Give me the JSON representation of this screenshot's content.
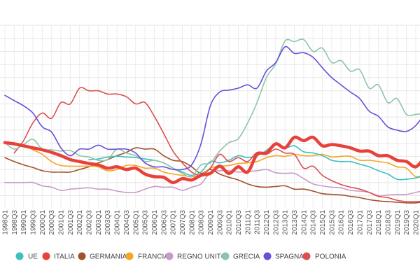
{
  "chart_data": {
    "type": "line",
    "title": "",
    "xlabel": "",
    "ylabel": "",
    "ylim": [
      0,
      30
    ],
    "grid": true,
    "legend_position": "bottom",
    "x": [
      "1998Q1",
      "1998Q3",
      "1999Q1",
      "1999Q3",
      "2000Q1",
      "2000Q3",
      "2001Q1",
      "2001Q3",
      "2002Q1",
      "2002Q3",
      "2003Q1",
      "2003Q3",
      "2004Q1",
      "2004Q3",
      "2005Q1",
      "2005Q3",
      "2006Q1",
      "2006Q3",
      "2007Q1",
      "2007Q3",
      "2008Q1",
      "2008Q3",
      "2009Q1",
      "2009Q3",
      "2010Q1",
      "2010Q3",
      "2011Q1",
      "2011Q3",
      "2012Q1",
      "2012Q3",
      "2013Q1",
      "2013Q3",
      "2014Q1",
      "2014Q3",
      "2015Q1",
      "2015Q3",
      "2016Q1",
      "2016Q3",
      "2017Q1",
      "2017Q3",
      "2018Q1",
      "2018Q3",
      "2019Q1",
      "2019Q3",
      "2020Q1",
      "2020Q3"
    ],
    "series": [
      {
        "name": "REGNO UNITO",
        "color": "#c99ac9",
        "values": [
          6.0,
          6.0,
          6.0,
          6.0,
          5.5,
          5.3,
          4.8,
          5.0,
          5.1,
          5.2,
          5.0,
          5.0,
          4.7,
          4.5,
          4.5,
          5.0,
          5.4,
          5.3,
          5.3,
          4.8,
          5.3,
          5.8,
          7.5,
          7.8,
          7.8,
          7.6,
          7.7,
          7.8,
          8.0,
          7.5,
          7.4,
          7.4,
          6.6,
          5.8,
          5.5,
          5.3,
          5.2,
          4.8,
          4.7,
          4.5,
          4.0,
          4.1,
          4.2,
          4.2,
          4.5,
          4.8
        ]
      },
      {
        "name": "GERMANIA",
        "color": "#a0522d",
        "values": [
          9.8,
          9.2,
          8.7,
          8.3,
          7.8,
          7.6,
          7.6,
          7.6,
          8.0,
          8.4,
          9.0,
          9.5,
          10.1,
          10.6,
          11.3,
          11.1,
          11.1,
          10.1,
          9.4,
          9.2,
          8.4,
          7.4,
          8.0,
          7.3,
          6.8,
          6.4,
          5.8,
          5.4,
          5.3,
          5.4,
          5.5,
          5.0,
          5.0,
          4.7,
          4.3,
          4.2,
          4.1,
          3.9,
          3.7,
          3.4,
          3.2,
          3.1,
          3.0,
          2.9,
          2.9,
          3.1
        ]
      },
      {
        "name": "FRANCIA",
        "color": "#f5a623",
        "values": [
          11.9,
          11.9,
          11.7,
          11.0,
          10.3,
          9.2,
          8.6,
          8.5,
          8.5,
          8.5,
          8.4,
          7.8,
          8.0,
          8.6,
          8.6,
          8.2,
          8.2,
          7.6,
          7.3,
          7.1,
          6.9,
          7.1,
          8.2,
          8.5,
          8.6,
          8.9,
          9.0,
          9.2,
          9.8,
          10.1,
          10.0,
          10.3,
          10.1,
          10.1,
          10.3,
          9.9,
          10.0,
          10.0,
          9.4,
          9.4,
          9.2,
          9.0,
          8.4,
          8.2,
          6.9,
          7.3
        ]
      },
      {
        "name": "UE",
        "color": "#3dbfc0",
        "values": [
          null,
          null,
          null,
          null,
          null,
          null,
          null,
          null,
          null,
          9.5,
          9.6,
          9.9,
          10.0,
          9.9,
          9.8,
          9.6,
          9.4,
          9.0,
          8.2,
          7.6,
          7.1,
          7.6,
          9.2,
          9.0,
          9.4,
          10.1,
          9.8,
          10.1,
          10.9,
          11.9,
          11.3,
          11.6,
          10.7,
          10.5,
          10.1,
          9.4,
          9.2,
          9.2,
          8.8,
          8.4,
          7.8,
          7.3,
          6.5,
          6.5,
          6.7,
          7.1
        ]
      },
      {
        "name": "POLONIA",
        "color": "#d9504f",
        "values": [
          null,
          10.5,
          12.4,
          15.1,
          16.6,
          15.8,
          18.2,
          18.0,
          20.4,
          20.0,
          20.0,
          19.5,
          19.5,
          19.1,
          18.0,
          18.2,
          16.1,
          13.5,
          10.8,
          9.0,
          7.6,
          7.1,
          8.2,
          10.3,
          9.2,
          9.8,
          9.2,
          10.6,
          10.3,
          11.1,
          10.5,
          10.3,
          8.2,
          8.5,
          7.1,
          6.3,
          5.7,
          5.3,
          5.0,
          4.5,
          3.9,
          3.7,
          3.3,
          3.1,
          3.1,
          3.2
        ]
      },
      {
        "name": "GRECIA",
        "color": "#8fc4a8",
        "values": [
          12.1,
          11.1,
          11.8,
          12.6,
          11.1,
          11.0,
          10.8,
          10.9,
          10.1,
          9.9,
          9.4,
          9.5,
          11.1,
          10.5,
          10.1,
          9.2,
          9.4,
          9.0,
          8.2,
          7.4,
          6.9,
          8.7,
          9.0,
          10.8,
          12.1,
          12.7,
          15.1,
          18.2,
          22.0,
          24.1,
          27.6,
          27.5,
          27.8,
          26.0,
          26.5,
          24.3,
          24.6,
          23.0,
          23.2,
          20.4,
          20.9,
          18.2,
          18.8,
          16.4,
          16.4,
          16.6
        ]
      },
      {
        "name": "SPAGNA",
        "color": "#6a4fd8",
        "values": [
          19.3,
          18.5,
          17.7,
          16.6,
          14.5,
          13.7,
          11.3,
          10.1,
          11.1,
          11.1,
          11.7,
          11.1,
          11.1,
          11.1,
          10.5,
          9.0,
          8.4,
          8.4,
          8.0,
          8.0,
          8.7,
          11.9,
          17.7,
          19.8,
          20.1,
          20.4,
          20.9,
          20.4,
          23.0,
          24.3,
          26.7,
          25.7,
          25.8,
          25.1,
          23.5,
          22.0,
          20.9,
          19.8,
          18.8,
          16.9,
          16.1,
          14.5,
          14.0,
          13.8,
          14.7,
          16.6
        ]
      },
      {
        "name": "ITALIA",
        "color": "#e8413a",
        "values": [
          12.1,
          11.9,
          11.6,
          11.3,
          11.0,
          10.6,
          10.1,
          9.5,
          9.2,
          8.9,
          8.7,
          8.2,
          8.4,
          8.0,
          8.2,
          7.3,
          6.9,
          6.8,
          6.0,
          6.6,
          6.4,
          7.1,
          7.4,
          8.5,
          7.4,
          8.4,
          7.6,
          10.3,
          10.5,
          11.9,
          11.3,
          12.9,
          12.4,
          12.9,
          11.6,
          11.8,
          11.6,
          11.3,
          10.8,
          10.8,
          10.1,
          10.1,
          9.4,
          9.2,
          8.4,
          10.0
        ]
      }
    ],
    "legend": [
      "UE",
      "ITALIA",
      "GERMANIA",
      "FRANCIA",
      "REGNO UNITO",
      "GRECIA",
      "SPAGNA",
      "POLONIA"
    ]
  }
}
